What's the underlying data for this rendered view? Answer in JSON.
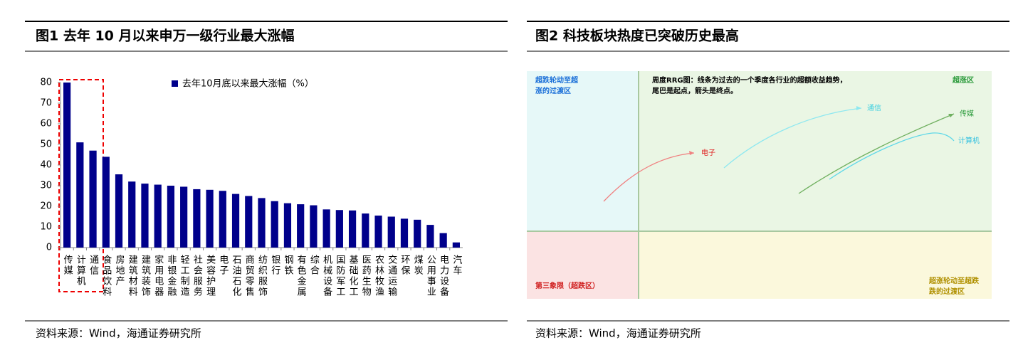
{
  "figures": [
    {
      "title": "图1  去年 10 月以来申万一级行业最大涨幅",
      "source": "资料来源：Wind，海通证券研究所"
    },
    {
      "title": "图2  科技板块热度已突破历史最高",
      "source": "资料来源：Wind，海通证券研究所"
    }
  ],
  "chart_data": {
    "type": "bar",
    "categories": [
      "传媒",
      "计算机",
      "通信",
      "食品饮料",
      "房地产",
      "建筑材料",
      "建筑装饰",
      "家用电器",
      "非银金融",
      "轻工制造",
      "社会服务",
      "美容护理",
      "电子",
      "石油石化",
      "商贸零售",
      "纺织服饰",
      "银行",
      "钢铁",
      "有色金属",
      "综合",
      "机械设备",
      "国防军工",
      "基础化工",
      "医药生物",
      "农林牧渔",
      "交通运输",
      "环保",
      "煤炭",
      "公用事业",
      "电力设备",
      "汽车"
    ],
    "series": [
      {
        "name": "去年10月底以来最大涨幅（%）",
        "color": "#00008b",
        "values": [
          80,
          51,
          47,
          44,
          35.5,
          32,
          31,
          30.5,
          30,
          29.5,
          28.3,
          28,
          27.5,
          26,
          25,
          24,
          22.5,
          21.5,
          21,
          20.5,
          18.5,
          18.2,
          18,
          16.5,
          15.5,
          15,
          14,
          13.5,
          11,
          7,
          2.5
        ]
      }
    ],
    "ylim": [
      0,
      80
    ],
    "yticks": [
      0,
      10,
      20,
      30,
      40,
      50,
      60,
      70,
      80
    ],
    "grid": false
  },
  "rrg": {
    "quadrants": {
      "top_left": [
        "超跌轮动至超",
        "涨的过渡区"
      ],
      "top_right": [
        "超涨区"
      ],
      "bottom_left": [
        "第三象限（超跌区）"
      ],
      "bottom_right": [
        "超涨轮动至超跌",
        "跌的过渡区"
      ]
    },
    "note": [
      "周度RRG图：线条为过去的一个季度各行业的超额收益趋势，",
      "尾巴是起点，箭头是终点。"
    ],
    "lines": [
      "通信",
      "传媒",
      "计算机",
      "电子"
    ]
  }
}
